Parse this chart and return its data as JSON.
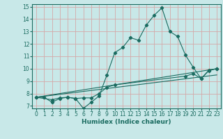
{
  "xlabel": "Humidex (Indice chaleur)",
  "xlim": [
    -0.5,
    23.5
  ],
  "ylim": [
    6.8,
    15.2
  ],
  "yticks": [
    7,
    8,
    9,
    10,
    11,
    12,
    13,
    14,
    15
  ],
  "xticks": [
    0,
    1,
    2,
    3,
    4,
    5,
    6,
    7,
    8,
    9,
    10,
    11,
    12,
    13,
    14,
    15,
    16,
    17,
    18,
    19,
    20,
    21,
    22,
    23
  ],
  "bg_color": "#c8e8e8",
  "line_color": "#1a6b60",
  "grid_color": "#d4a8a8",
  "series1_x": [
    0,
    1,
    2,
    3,
    4,
    5,
    6,
    7,
    8,
    9,
    10,
    11,
    12,
    13,
    14,
    15,
    16,
    17,
    18,
    19,
    20,
    21,
    22,
    23
  ],
  "series1_y": [
    7.7,
    7.7,
    7.3,
    7.6,
    7.7,
    7.6,
    6.8,
    7.3,
    7.8,
    9.5,
    11.3,
    11.7,
    12.5,
    12.3,
    13.5,
    14.3,
    14.9,
    13.0,
    12.6,
    11.1,
    10.1,
    9.2,
    9.9,
    10.0
  ],
  "series2_x": [
    0,
    23
  ],
  "series2_y": [
    7.7,
    10.0
  ],
  "series3_x": [
    0,
    2,
    3,
    4,
    5,
    6,
    7,
    8,
    9,
    10,
    19,
    20,
    21,
    22,
    23
  ],
  "series3_y": [
    7.7,
    7.5,
    7.65,
    7.7,
    7.6,
    7.65,
    7.65,
    8.0,
    8.5,
    8.7,
    9.4,
    9.6,
    9.2,
    9.85,
    10.0
  ],
  "series4_x": [
    0,
    23
  ],
  "series4_y": [
    7.7,
    9.5
  ]
}
